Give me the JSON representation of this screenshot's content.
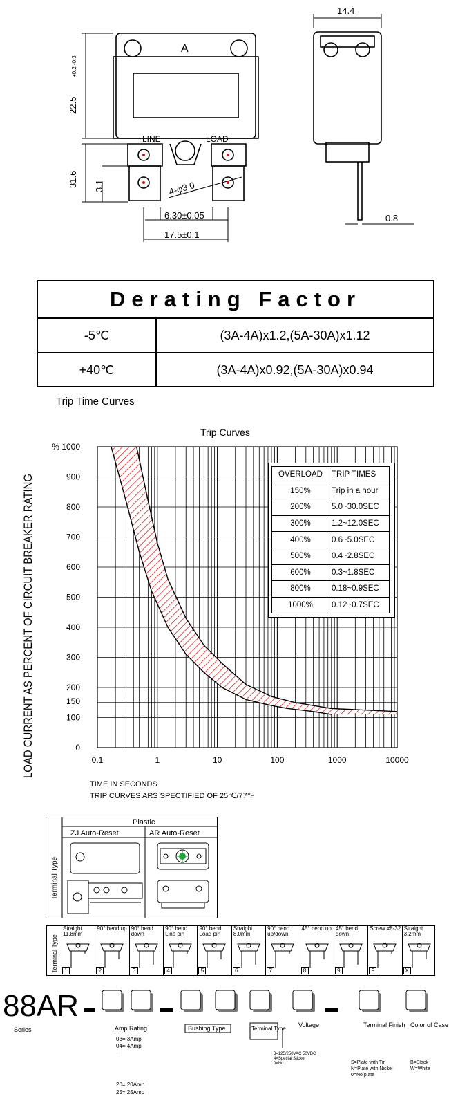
{
  "drawing": {
    "dim_width": "14.4",
    "dim_height": "22.5",
    "dim_height_tol": "+0.2 -0.3",
    "dim_terminal_len": "31.6",
    "dim_terminal_small": "3.1",
    "dim_hole": "4-φ3.0",
    "dim_tab_width": "6.30±0.05",
    "dim_pitch": "17.5±0.1",
    "dim_thickness": "0.8",
    "label_a": "A",
    "label_line": "LINE",
    "label_load": "LOAD"
  },
  "derating": {
    "title": "Derating Factor",
    "rows": [
      {
        "temp": "-5℃",
        "factor": "(3A-4A)x1.2,(5A-30A)x1.12"
      },
      {
        "temp": "+40℃",
        "factor": "(3A-4A)x0.92,(5A-30A)x0.94"
      }
    ]
  },
  "trip_section_title": "Trip Time Curves",
  "chart_data": {
    "type": "area",
    "title": "Trip Curves",
    "ylabel": "LOAD CURRENT AS PERCENT OF CIRCUIT BREAKER RATING",
    "xlabel": "TIME IN SECONDS",
    "note": "TRIP CURVES ARS SPECTIFIED OF 25℃/77℉",
    "x_scale": "log",
    "xlim": [
      0.1,
      10000
    ],
    "ylim": [
      0,
      1000
    ],
    "x_ticks": [
      "0.1",
      "1",
      "10",
      "100",
      "1000",
      "10000"
    ],
    "y_ticks": [
      "0",
      "100",
      "150",
      "200",
      "300",
      "400",
      "500",
      "600",
      "700",
      "800",
      "900",
      "1000"
    ],
    "y_top_label": "% 1000",
    "grid": true,
    "series": [
      {
        "x": [
          0.17,
          0.3,
          0.5,
          0.8,
          1.5,
          3,
          6,
          12,
          30,
          80,
          150,
          400,
          800
        ],
        "y": [
          1000,
          820,
          650,
          520,
          400,
          310,
          250,
          200,
          160,
          140,
          130,
          120,
          110
        ]
      },
      {
        "x": [
          0.45,
          0.7,
          1,
          1.5,
          3,
          6,
          12,
          30,
          80,
          200,
          800,
          10000
        ],
        "y": [
          1000,
          820,
          680,
          560,
          430,
          340,
          280,
          210,
          170,
          150,
          130,
          120
        ]
      }
    ],
    "hatch_color": "#e02020"
  },
  "overload_table": {
    "headers": [
      "OVERLOAD",
      "TRIP TIMES"
    ],
    "rows": [
      [
        "150%",
        "Trip in a hour"
      ],
      [
        "200%",
        "5.0~30.0SEC"
      ],
      [
        "300%",
        "1.2~12.0SEC"
      ],
      [
        "400%",
        "0.6~5.0SEC"
      ],
      [
        "500%",
        "0.4~2.8SEC"
      ],
      [
        "600%",
        "0.3~1.8SEC"
      ],
      [
        "800%",
        "0.18~0.9SEC"
      ],
      [
        "1000%",
        "0.12~0.7SEC"
      ]
    ]
  },
  "plastic_table": {
    "side_label": "Terminal Type",
    "header": "Plastic",
    "col1": "ZJ  Auto-Reset",
    "col2": "AR  Auto-Reset"
  },
  "terminal_types": {
    "side_label": "Terminal Type",
    "items": [
      {
        "label": "Straight 11.8mm",
        "num": "1"
      },
      {
        "label": "90° bend up",
        "num": "2"
      },
      {
        "label": "90° bend down",
        "num": "3"
      },
      {
        "label": "90° bend Line pin",
        "num": "4"
      },
      {
        "label": "90° bend Load pin",
        "num": "5"
      },
      {
        "label": "Straight 8.0mm",
        "num": "6"
      },
      {
        "label": "90° bend up/down",
        "num": "7"
      },
      {
        "label": "45° bend up",
        "num": "8"
      },
      {
        "label": "45° bend down",
        "num": "9"
      },
      {
        "label": "Screw #8-32",
        "num": "F"
      },
      {
        "label": "Straight 3.2mm",
        "num": "X"
      }
    ]
  },
  "part_number": {
    "prefix": "88AR",
    "series": "Series",
    "amp_rating": "Amp Rating",
    "amp_options": [
      "03= 3Amp",
      "04= 4Amp",
      ".",
      "20= 20Amp",
      "25= 25Amp"
    ],
    "bushing": "Bushing Type",
    "terminal_type": "Terminal Type",
    "voltage": "Voltage",
    "voltage_options": [
      "3=125/250VAC 50VDC",
      "4=Special Sticker",
      "0=No"
    ],
    "terminal_finish": "Terminal Finish",
    "finish_options": [
      "S=Plate with Tin",
      "N=Plate with Nickel",
      "0=No plate"
    ],
    "color": "Color of Case",
    "color_options": [
      "B=Black",
      "W=White"
    ]
  }
}
